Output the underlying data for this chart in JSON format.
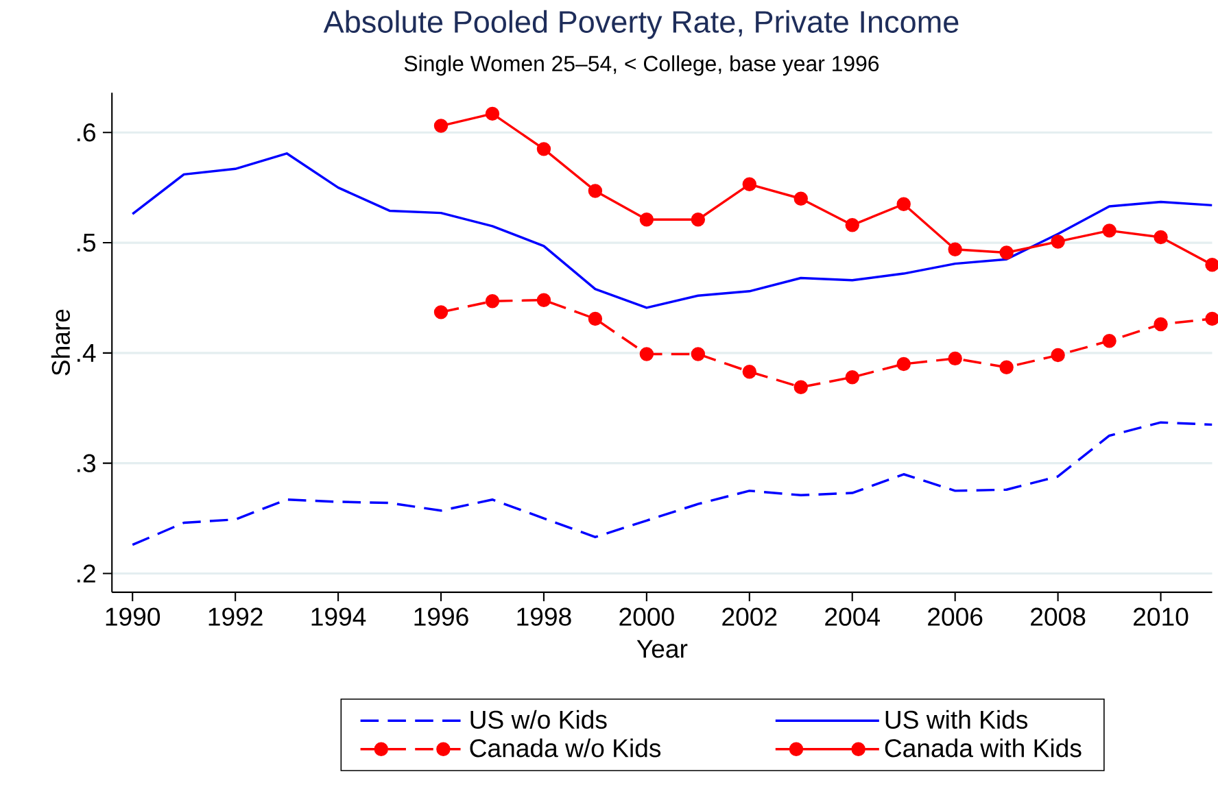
{
  "chart_data": {
    "type": "line",
    "title": "Absolute Pooled Poverty Rate, Private Income",
    "subtitle": "Single Women 25–54, < College, base year 1996",
    "xlabel": "Year",
    "ylabel": "Share",
    "x": [
      1990,
      1991,
      1992,
      1993,
      1994,
      1995,
      1996,
      1997,
      1998,
      1999,
      2000,
      2001,
      2002,
      2003,
      2004,
      2005,
      2006,
      2007,
      2008,
      2009,
      2010,
      2011
    ],
    "xlim": [
      1989.6,
      2011
    ],
    "ylim": [
      0.183,
      0.636
    ],
    "xticks": [
      1990,
      1992,
      1994,
      1996,
      1998,
      2000,
      2002,
      2004,
      2006,
      2008,
      2010
    ],
    "yticks": [
      {
        "value": 0.2,
        "label": ".2"
      },
      {
        "value": 0.3,
        "label": ".3"
      },
      {
        "value": 0.4,
        "label": ".4"
      },
      {
        "value": 0.5,
        "label": ".5"
      },
      {
        "value": 0.6,
        "label": ".6"
      }
    ],
    "grid": "y",
    "legend": "bottom",
    "series": [
      {
        "name": "US w/o Kids",
        "color": "#0000ff",
        "line_style": "dashed",
        "marker": "none",
        "values": [
          0.226,
          0.246,
          0.249,
          0.267,
          0.265,
          0.264,
          0.257,
          0.267,
          0.25,
          0.233,
          0.248,
          0.263,
          0.275,
          0.271,
          0.273,
          0.29,
          0.275,
          0.276,
          0.288,
          0.325,
          0.337,
          0.335
        ]
      },
      {
        "name": "US with Kids",
        "color": "#0000ff",
        "line_style": "solid",
        "marker": "none",
        "values": [
          0.526,
          0.562,
          0.567,
          0.581,
          0.55,
          0.529,
          0.527,
          0.515,
          0.497,
          0.458,
          0.441,
          0.452,
          0.456,
          0.468,
          0.466,
          0.472,
          0.481,
          0.485,
          0.508,
          0.533,
          0.537,
          0.534
        ]
      },
      {
        "name": "Canada w/o Kids",
        "color": "#ff0000",
        "line_style": "dashed",
        "marker": "circle",
        "values": [
          null,
          null,
          null,
          null,
          null,
          null,
          0.437,
          0.447,
          0.448,
          0.431,
          0.399,
          0.399,
          0.383,
          0.369,
          0.378,
          0.39,
          0.395,
          0.387,
          0.398,
          0.411,
          0.426,
          0.431
        ]
      },
      {
        "name": "Canada with Kids",
        "color": "#ff0000",
        "line_style": "solid",
        "marker": "circle",
        "values": [
          null,
          null,
          null,
          null,
          null,
          null,
          0.606,
          0.617,
          0.585,
          0.547,
          0.521,
          0.521,
          0.553,
          0.54,
          0.516,
          0.535,
          0.494,
          0.491,
          0.501,
          0.511,
          0.505,
          0.48
        ]
      }
    ]
  }
}
